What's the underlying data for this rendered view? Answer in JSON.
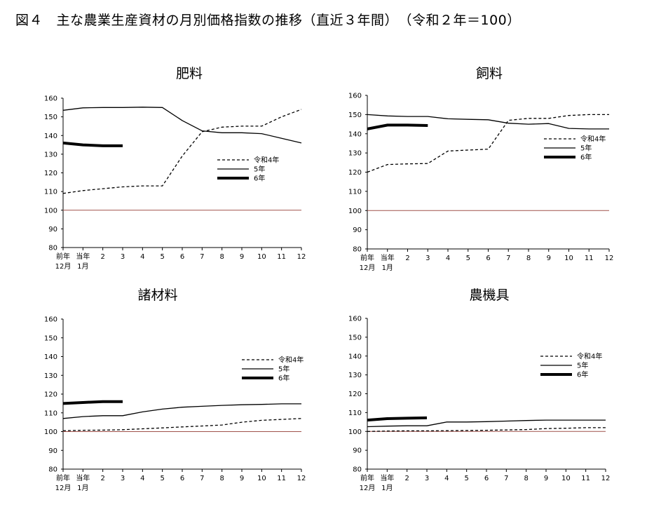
{
  "title": "図４　主な農業生産資材の月別価格指数の推移（直近３年間）　（令和２年＝100）",
  "chart_data": [
    {
      "type": "line",
      "title": "肥料",
      "ylim": [
        80,
        160
      ],
      "yticks": [
        "160",
        "150",
        "140",
        "130",
        "120",
        "110",
        "100",
        "90",
        "80"
      ],
      "x_labels_top": [
        "前年",
        "当年",
        "2",
        "3",
        "4",
        "5",
        "6",
        "7",
        "8",
        "9",
        "10",
        "11",
        "12"
      ],
      "x_labels_bottom": [
        "12月",
        "1月"
      ],
      "legend_position": "center-right",
      "series": [
        {
          "name": "令和4年",
          "style": "dashed",
          "values": [
            109,
            110.5,
            111.5,
            112.5,
            113,
            113,
            129,
            142,
            144.5,
            145,
            145,
            150,
            154
          ]
        },
        {
          "name": "5年",
          "style": "solid",
          "values": [
            153.5,
            154.8,
            155,
            155,
            155.2,
            155,
            148,
            142.5,
            141.5,
            141.5,
            141,
            138.5,
            136
          ]
        },
        {
          "name": "6年",
          "style": "thick",
          "values": [
            136,
            135,
            134.5,
            134.5
          ]
        }
      ],
      "reference_line": 100
    },
    {
      "type": "line",
      "title": "飼料",
      "ylim": [
        80,
        160
      ],
      "yticks": [
        "160",
        "150",
        "140",
        "130",
        "120",
        "110",
        "100",
        "90",
        "80"
      ],
      "x_labels_top": [
        "前年",
        "当年",
        "2",
        "3",
        "4",
        "5",
        "6",
        "7",
        "8",
        "9",
        "10",
        "11",
        "12"
      ],
      "x_labels_bottom": [
        "12月",
        "1月"
      ],
      "legend_position": "center-right",
      "series": [
        {
          "name": "令和4年",
          "style": "dashed",
          "values": [
            120,
            124,
            124.3,
            124.5,
            131,
            131.5,
            132,
            147,
            148,
            148,
            149.5,
            150,
            150
          ]
        },
        {
          "name": "5年",
          "style": "solid",
          "values": [
            150,
            149.3,
            149,
            149,
            147.8,
            147.5,
            147.3,
            145.5,
            145,
            145.3,
            142.8,
            142.5,
            142.5
          ]
        },
        {
          "name": "6年",
          "style": "thick",
          "values": [
            142.5,
            144.5,
            144.5,
            144.3
          ]
        }
      ],
      "reference_line": 100
    },
    {
      "type": "line",
      "title": "諸材料",
      "ylim": [
        80,
        160
      ],
      "yticks": [
        "160",
        "150",
        "140",
        "130",
        "120",
        "110",
        "100",
        "90",
        "80"
      ],
      "x_labels_top": [
        "前年",
        "当年",
        "2",
        "3",
        "4",
        "5",
        "6",
        "7",
        "8",
        "9",
        "10",
        "11",
        "12"
      ],
      "x_labels_bottom": [
        "12月",
        "1月"
      ],
      "legend_position": "top-right",
      "series": [
        {
          "name": "令和4年",
          "style": "dashed",
          "values": [
            100.5,
            100.7,
            100.8,
            101,
            101.5,
            102,
            102.5,
            103,
            103.5,
            105,
            106,
            106.5,
            107
          ]
        },
        {
          "name": "5年",
          "style": "solid",
          "values": [
            107,
            108,
            108.5,
            108.5,
            110.5,
            112,
            113,
            113.5,
            114,
            114.3,
            114.5,
            114.8,
            114.8
          ]
        },
        {
          "name": "6年",
          "style": "thick",
          "values": [
            115,
            115.5,
            116,
            116
          ]
        }
      ],
      "reference_line": 100
    },
    {
      "type": "line",
      "title": "農機具",
      "ylim": [
        80,
        160
      ],
      "yticks": [
        "160",
        "150",
        "140",
        "130",
        "120",
        "110",
        "100",
        "90",
        "80"
      ],
      "x_labels_top": [
        "前年",
        "当年",
        "2",
        "3",
        "4",
        "5",
        "6",
        "7",
        "8",
        "9",
        "10",
        "11",
        "12"
      ],
      "x_labels_bottom": [
        "12月",
        "1月"
      ],
      "legend_position": "top-right",
      "series": [
        {
          "name": "令和4年",
          "style": "dashed",
          "values": [
            100,
            100.2,
            100.3,
            100.3,
            100.4,
            100.5,
            100.6,
            100.8,
            101,
            101.5,
            101.7,
            102,
            102
          ]
        },
        {
          "name": "5年",
          "style": "solid",
          "values": [
            102.5,
            102.8,
            103,
            103,
            105,
            105,
            105.2,
            105.5,
            105.8,
            106,
            106,
            106,
            106
          ]
        },
        {
          "name": "6年",
          "style": "thick",
          "values": [
            106,
            106.8,
            107,
            107.2
          ]
        }
      ],
      "reference_line": 100
    }
  ]
}
